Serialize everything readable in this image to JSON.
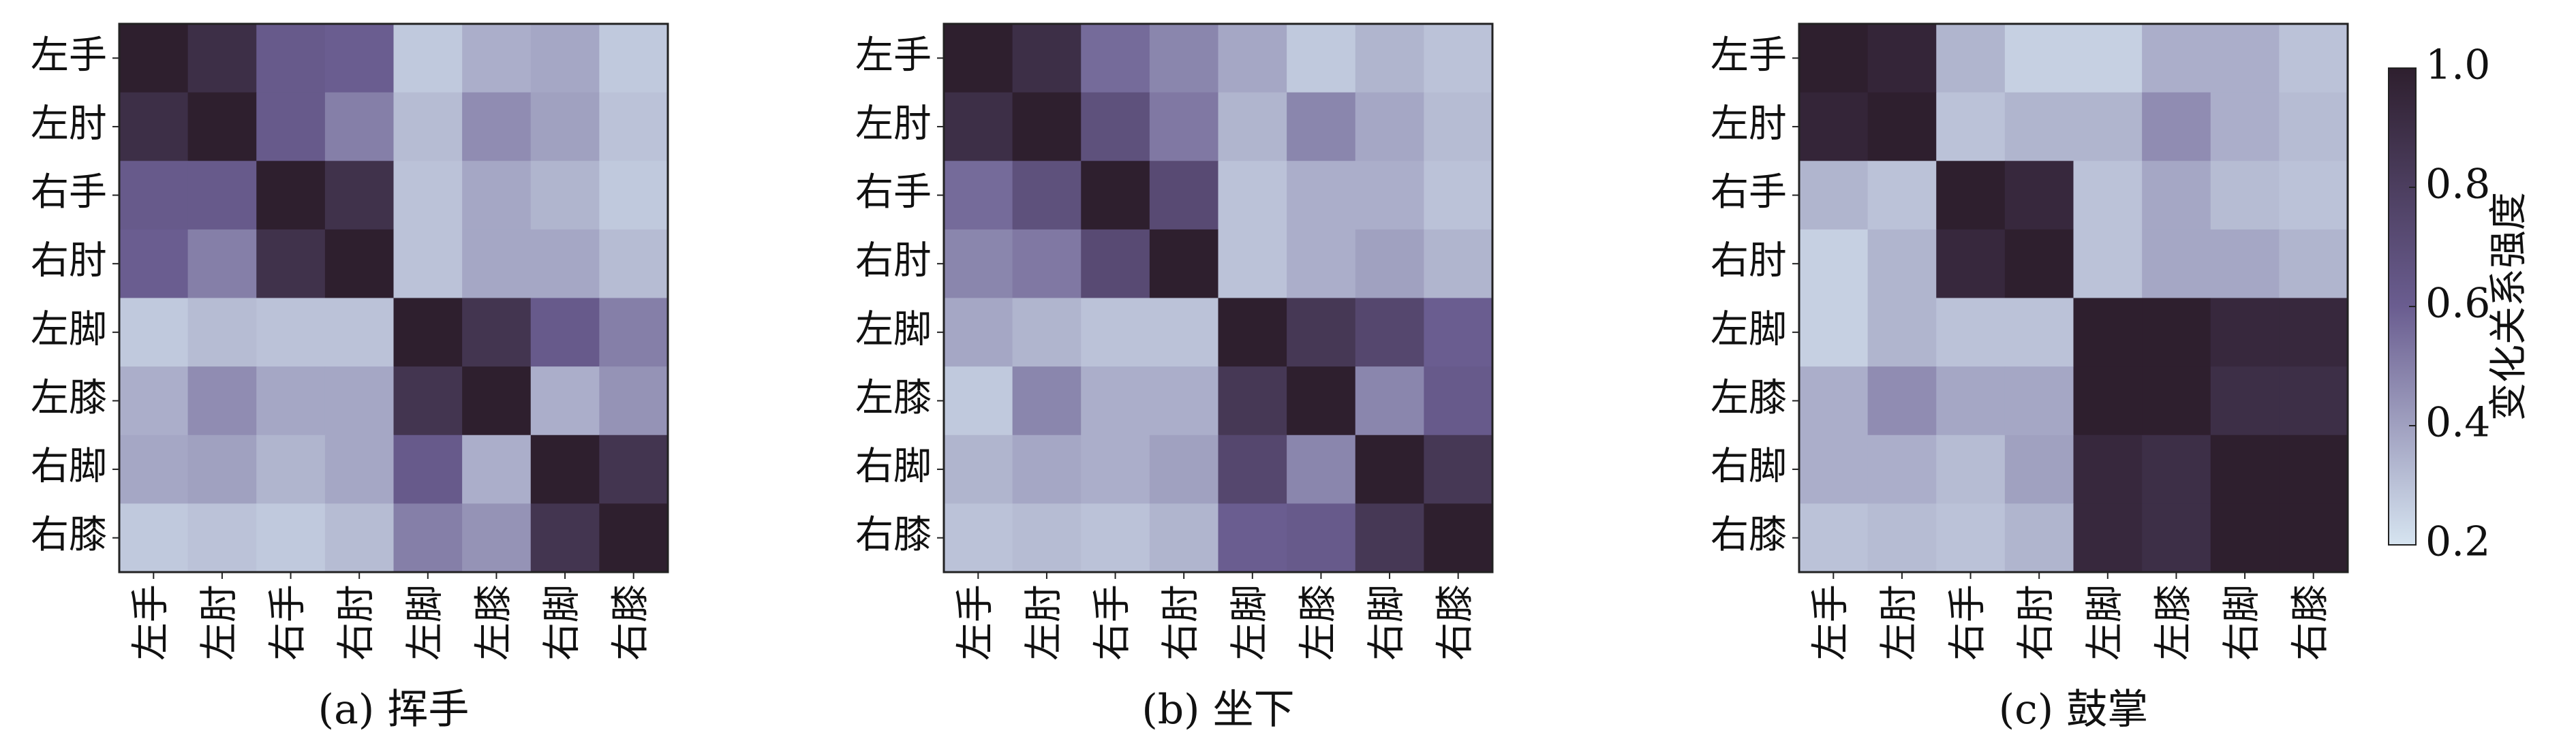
{
  "chart_data": [
    {
      "type": "heatmap",
      "caption": "(a) 挥手",
      "row_labels": [
        "左手",
        "左肘",
        "右手",
        "右肘",
        "左脚",
        "左膝",
        "右脚",
        "右膝"
      ],
      "col_labels": [
        "左手",
        "左肘",
        "右手",
        "右肘",
        "左脚",
        "左膝",
        "右脚",
        "右膝"
      ],
      "values": [
        [
          1.0,
          0.9,
          0.62,
          0.6,
          0.28,
          0.36,
          0.38,
          0.28
        ],
        [
          0.9,
          1.0,
          0.62,
          0.5,
          0.32,
          0.46,
          0.4,
          0.3
        ],
        [
          0.62,
          0.62,
          1.0,
          0.88,
          0.3,
          0.38,
          0.34,
          0.28
        ],
        [
          0.6,
          0.5,
          0.88,
          1.0,
          0.3,
          0.38,
          0.38,
          0.32
        ],
        [
          0.28,
          0.32,
          0.3,
          0.3,
          1.0,
          0.86,
          0.62,
          0.5
        ],
        [
          0.36,
          0.46,
          0.38,
          0.38,
          0.86,
          1.0,
          0.36,
          0.44
        ],
        [
          0.38,
          0.4,
          0.34,
          0.38,
          0.62,
          0.36,
          1.0,
          0.86
        ],
        [
          0.28,
          0.3,
          0.28,
          0.32,
          0.5,
          0.44,
          0.86,
          1.0
        ]
      ]
    },
    {
      "type": "heatmap",
      "caption": "(b) 坐下",
      "row_labels": [
        "左手",
        "左肘",
        "右手",
        "右肘",
        "左脚",
        "左膝",
        "右脚",
        "右膝"
      ],
      "col_labels": [
        "左手",
        "左肘",
        "右手",
        "右肘",
        "左脚",
        "左膝",
        "右脚",
        "右膝"
      ],
      "values": [
        [
          1.0,
          0.9,
          0.56,
          0.48,
          0.38,
          0.28,
          0.34,
          0.3
        ],
        [
          0.9,
          1.0,
          0.68,
          0.52,
          0.34,
          0.48,
          0.38,
          0.32
        ],
        [
          0.56,
          0.68,
          1.0,
          0.72,
          0.3,
          0.36,
          0.36,
          0.3
        ],
        [
          0.48,
          0.52,
          0.72,
          1.0,
          0.3,
          0.36,
          0.4,
          0.34
        ],
        [
          0.38,
          0.34,
          0.3,
          0.3,
          1.0,
          0.84,
          0.74,
          0.6
        ],
        [
          0.28,
          0.48,
          0.36,
          0.36,
          0.84,
          1.0,
          0.48,
          0.62
        ],
        [
          0.34,
          0.38,
          0.36,
          0.4,
          0.74,
          0.48,
          1.0,
          0.84
        ],
        [
          0.3,
          0.32,
          0.3,
          0.34,
          0.6,
          0.62,
          0.84,
          1.0
        ]
      ]
    },
    {
      "type": "heatmap",
      "caption": "(c) 鼓掌",
      "row_labels": [
        "左手",
        "左肘",
        "右手",
        "右肘",
        "左脚",
        "左膝",
        "右脚",
        "右膝"
      ],
      "col_labels": [
        "左手",
        "左肘",
        "右手",
        "右肘",
        "左脚",
        "左膝",
        "右脚",
        "右膝"
      ],
      "values": [
        [
          1.0,
          0.96,
          0.34,
          0.26,
          0.26,
          0.36,
          0.36,
          0.3
        ],
        [
          0.96,
          1.0,
          0.3,
          0.34,
          0.34,
          0.46,
          0.36,
          0.32
        ],
        [
          0.34,
          0.3,
          1.0,
          0.94,
          0.3,
          0.38,
          0.32,
          0.3
        ],
        [
          0.26,
          0.34,
          0.94,
          1.0,
          0.3,
          0.38,
          0.38,
          0.34
        ],
        [
          0.26,
          0.34,
          0.3,
          0.3,
          1.0,
          1.0,
          0.94,
          0.94
        ],
        [
          0.36,
          0.46,
          0.38,
          0.38,
          1.0,
          1.0,
          0.9,
          0.9
        ],
        [
          0.36,
          0.36,
          0.32,
          0.4,
          0.94,
          0.9,
          1.0,
          1.0
        ],
        [
          0.3,
          0.32,
          0.3,
          0.34,
          0.94,
          0.9,
          1.0,
          1.0
        ]
      ]
    }
  ],
  "colorbar": {
    "label": "变化关系强度",
    "min": 0.2,
    "max": 1.0,
    "ticks": [
      "1.0",
      "0.8",
      "0.6",
      "0.4",
      "0.2"
    ],
    "color_low": "#d6e4f0",
    "color_mid": "#6a5d90",
    "color_high": "#2e1f2e"
  }
}
